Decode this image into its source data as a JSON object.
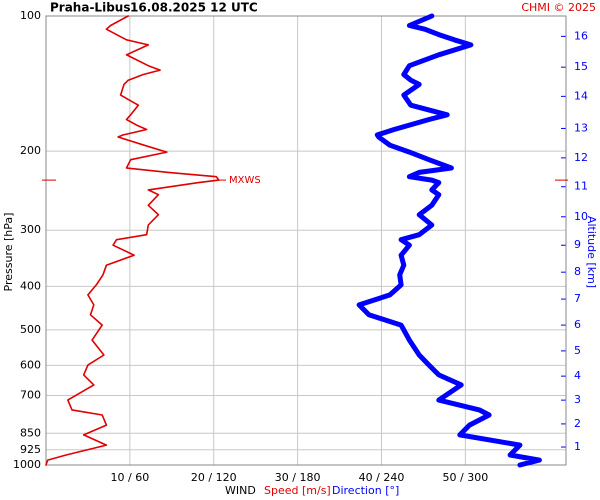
{
  "chart_data": {
    "type": "line",
    "title": "Praha-Libus",
    "subtitle": "16.08.2025 12 UTC",
    "credit": "CHMI © 2025",
    "xlabel": "WIND",
    "ylabel": "Pressure [hPa]",
    "y2label": "Altitude [km]",
    "log_y": true,
    "grid": true,
    "ylim": [
      100,
      1000
    ],
    "yticks": [
      100,
      200,
      300,
      400,
      500,
      600,
      700,
      850,
      925,
      1000
    ],
    "xlim": [
      0,
      62
    ],
    "x2lim": [
      0,
      372
    ],
    "xticks": [
      {
        "value": 10,
        "label": "10 / 60"
      },
      {
        "value": 20,
        "label": "20 / 120"
      },
      {
        "value": 30,
        "label": "30 / 180"
      },
      {
        "value": 40,
        "label": "40 / 240"
      },
      {
        "value": 50,
        "label": "50 / 300"
      }
    ],
    "y2ticks": [
      {
        "value": 1,
        "pressure": 912
      },
      {
        "value": 2,
        "pressure": 810
      },
      {
        "value": 3,
        "pressure": 717
      },
      {
        "value": 4,
        "pressure": 634
      },
      {
        "value": 5,
        "pressure": 557
      },
      {
        "value": 6,
        "pressure": 488
      },
      {
        "value": 7,
        "pressure": 427
      },
      {
        "value": 8,
        "pressure": 372
      },
      {
        "value": 9,
        "pressure": 324
      },
      {
        "value": 10,
        "pressure": 280
      },
      {
        "value": 11,
        "pressure": 240
      },
      {
        "value": 12,
        "pressure": 207
      },
      {
        "value": 13,
        "pressure": 178
      },
      {
        "value": 14,
        "pressure": 151
      },
      {
        "value": 15,
        "pressure": 130
      },
      {
        "value": 16,
        "pressure": 111
      }
    ],
    "annotations": [
      {
        "text": "MXWS",
        "pressure": 232,
        "color": "#e00000"
      }
    ],
    "pressure": [
      100,
      105,
      107,
      110,
      113,
      116,
      122,
      129,
      132,
      135,
      139,
      142,
      150,
      158,
      166,
      170,
      175,
      179,
      184,
      186,
      194,
      201,
      209,
      218,
      223,
      228,
      232,
      235,
      244,
      250,
      264,
      277,
      292,
      307,
      315,
      324,
      341,
      359,
      377,
      397,
      418,
      440,
      463,
      488,
      527,
      569,
      599,
      630,
      663,
      717,
      754,
      774,
      815,
      857,
      903,
      950,
      975,
      1000
    ],
    "series": [
      {
        "name": "Speed [m/s]",
        "color": "#e00000",
        "axis": "x",
        "values": [
          9.8,
          7.7,
          7.2,
          8.4,
          9.6,
          12.2,
          9.6,
          12.2,
          13.6,
          11.6,
          9.8,
          9.3,
          8.9,
          11.0,
          10.1,
          9.6,
          10.8,
          12.0,
          9.2,
          8.6,
          11.7,
          14.4,
          10.1,
          9.6,
          14.6,
          20.3,
          20.6,
          18.2,
          12.2,
          13.4,
          12.2,
          13.4,
          12.2,
          12.0,
          8.4,
          8.0,
          10.5,
          7.2,
          6.8,
          6.0,
          5.0,
          5.7,
          5.3,
          6.7,
          5.5,
          6.9,
          5.0,
          4.5,
          5.7,
          2.6,
          3.1,
          6.7,
          7.2,
          4.5,
          7.2,
          2.4,
          0.2,
          0
        ]
      },
      {
        "name": "Direction [°]",
        "color": "#0000ff",
        "axis": "x2",
        "values": [
          276,
          260,
          271,
          281,
          292,
          304,
          281,
          260,
          258,
          256,
          261,
          267,
          256,
          261,
          287,
          274,
          260,
          249,
          237,
          238,
          246,
          260,
          274,
          290,
          267,
          260,
          276,
          281,
          276,
          281,
          276,
          267,
          276,
          267,
          254,
          260,
          254,
          256,
          253,
          254,
          246,
          224,
          231,
          254,
          260,
          267,
          274,
          281,
          297,
          281,
          310,
          317,
          303,
          296,
          339,
          332,
          353,
          339
        ]
      }
    ]
  }
}
